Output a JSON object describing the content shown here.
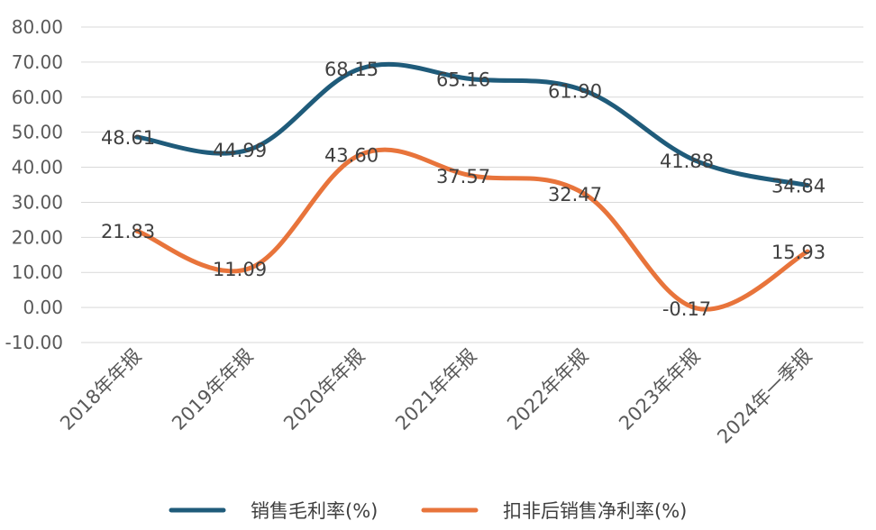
{
  "chart_data": {
    "type": "line",
    "categories": [
      "2018年年报",
      "2019年年报",
      "2020年年报",
      "2021年年报",
      "2022年年报",
      "2023年年报",
      "2024年一季报"
    ],
    "series": [
      {
        "name": "销售毛利率(%)",
        "color": "#1f5b7a",
        "values": [
          48.61,
          44.99,
          68.15,
          65.16,
          61.9,
          41.88,
          34.84
        ],
        "labels": [
          "48.61",
          "44.99",
          "68.15",
          "65.16",
          "61.90",
          "41.88",
          "34.84"
        ]
      },
      {
        "name": "扣非后销售净利率(%)",
        "color": "#e8743b",
        "values": [
          21.83,
          11.09,
          43.6,
          37.57,
          32.47,
          -0.17,
          15.93
        ],
        "labels": [
          "21.83",
          "11.09",
          "43.60",
          "37.57",
          "32.47",
          "-0.17",
          "15.93"
        ]
      }
    ],
    "ylim": [
      -10,
      80
    ],
    "yticks": [
      80,
      70,
      60,
      50,
      40,
      30,
      20,
      10,
      0,
      -10
    ],
    "ytick_labels": [
      "80.00",
      "70.00",
      "60.00",
      "50.00",
      "40.00",
      "30.00",
      "20.00",
      "10.00",
      "0.00",
      "-10.00"
    ],
    "grid": true,
    "legend": "bottom",
    "title": "",
    "xlabel": "",
    "ylabel": ""
  }
}
